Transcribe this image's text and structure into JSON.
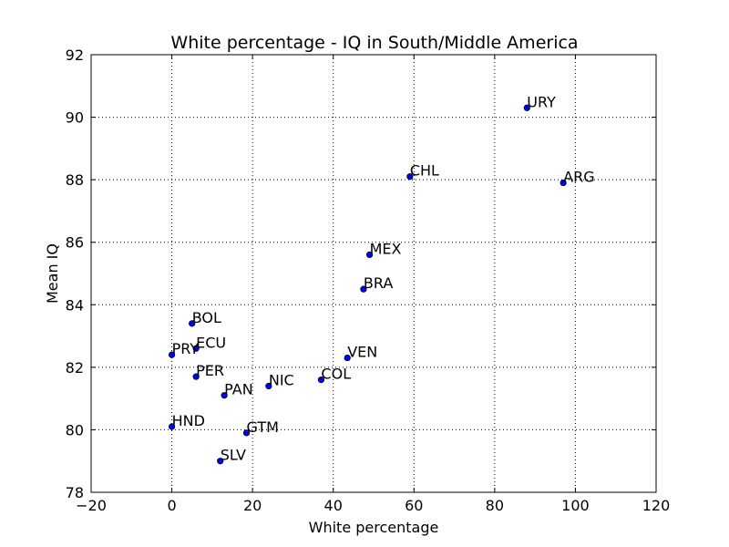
{
  "chart_data": {
    "type": "scatter",
    "title": "White percentage - IQ in South/Middle America",
    "xlabel": "White percentage",
    "ylabel": "Mean IQ",
    "xlim": [
      -20,
      120
    ],
    "ylim": [
      78,
      92
    ],
    "xticks": [
      -20,
      0,
      20,
      40,
      60,
      80,
      100,
      120
    ],
    "yticks": [
      78,
      80,
      82,
      84,
      86,
      88,
      90,
      92
    ],
    "x_tick_labels": [
      "−20",
      "0",
      "20",
      "40",
      "60",
      "80",
      "100",
      "120"
    ],
    "y_tick_labels": [
      "78",
      "80",
      "82",
      "84",
      "86",
      "88",
      "90",
      "92"
    ],
    "grid": true,
    "marker_color": "#0000ff",
    "points": [
      {
        "label": "URY",
        "x": 88,
        "y": 90.3
      },
      {
        "label": "CHL",
        "x": 59,
        "y": 88.1
      },
      {
        "label": "ARG",
        "x": 97,
        "y": 87.9
      },
      {
        "label": "MEX",
        "x": 49,
        "y": 85.6
      },
      {
        "label": "BRA",
        "x": 47.5,
        "y": 84.5
      },
      {
        "label": "BOL",
        "x": 5,
        "y": 83.4
      },
      {
        "label": "ECU",
        "x": 6,
        "y": 82.6
      },
      {
        "label": "PRY",
        "x": 0,
        "y": 82.4
      },
      {
        "label": "VEN",
        "x": 43.5,
        "y": 82.3
      },
      {
        "label": "PER",
        "x": 6,
        "y": 81.7
      },
      {
        "label": "COL",
        "x": 37,
        "y": 81.6
      },
      {
        "label": "NIC",
        "x": 24,
        "y": 81.4
      },
      {
        "label": "PAN",
        "x": 13,
        "y": 81.1
      },
      {
        "label": "HND",
        "x": 0,
        "y": 80.1
      },
      {
        "label": "GTM",
        "x": 18.5,
        "y": 79.9
      },
      {
        "label": "SLV",
        "x": 12,
        "y": 79.0
      }
    ]
  }
}
